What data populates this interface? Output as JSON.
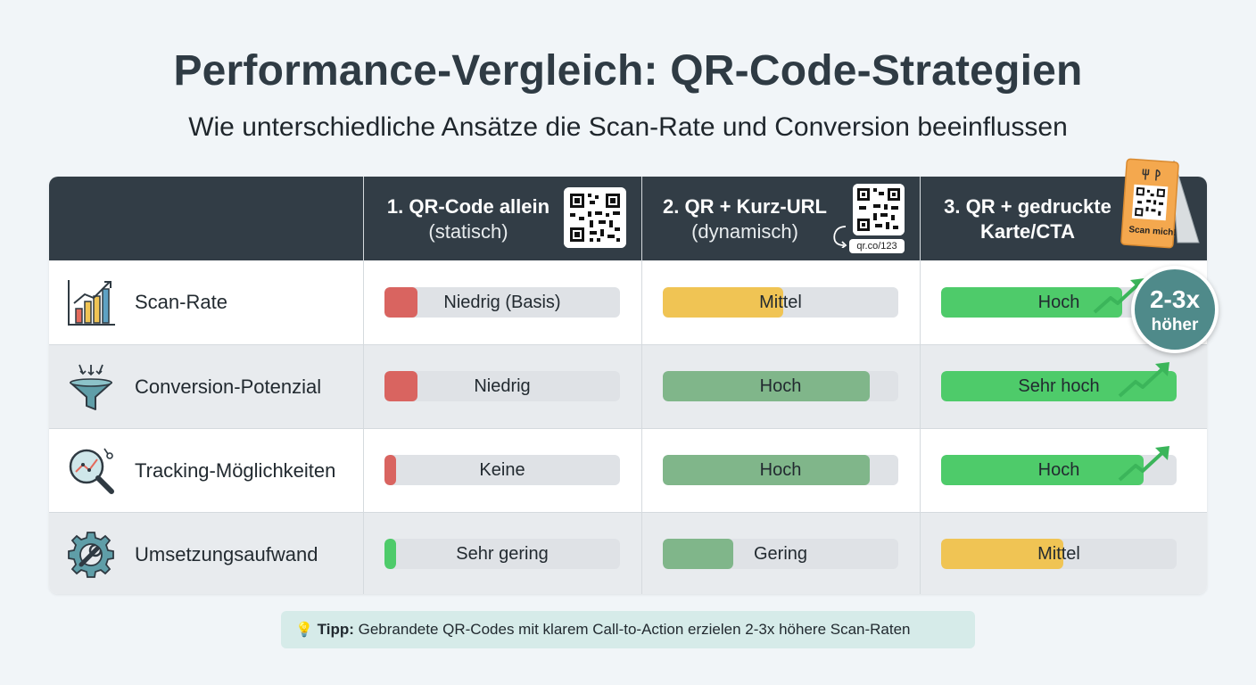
{
  "title": "Performance-Vergleich: QR-Code-Strategien",
  "subtitle": "Wie unterschiedliche Ansätze die Scan-Rate und Conversion beeinflussen",
  "columns": [
    {
      "label": "1. QR-Code allein",
      "sub": "(statisch)"
    },
    {
      "label": "2. QR + Kurz-URL",
      "sub": "(dynamisch)",
      "short_url": "qr.co/123"
    },
    {
      "label": "3. QR + gedruckte",
      "label2": "Karte/CTA",
      "card_text": "Scan mich!"
    }
  ],
  "rows": [
    {
      "label": "Scan-Rate",
      "icon": "bar-chart-icon",
      "cells": [
        {
          "text": "Niedrig (Basis)",
          "level": 0.14,
          "color": "#d96460"
        },
        {
          "text": "Mittel",
          "level": 0.51,
          "color": "#f0c454"
        },
        {
          "text": "Hoch",
          "level": 0.77,
          "color": "#4ecb6a"
        }
      ]
    },
    {
      "label": "Conversion-Potenzial",
      "icon": "funnel-icon",
      "cells": [
        {
          "text": "Niedrig",
          "level": 0.14,
          "color": "#d96460"
        },
        {
          "text": "Hoch",
          "level": 0.88,
          "color": "#80b68a"
        },
        {
          "text": "Sehr hoch",
          "level": 1.0,
          "color": "#4ecb6a"
        }
      ]
    },
    {
      "label": "Tracking-Möglichkeiten",
      "icon": "magnifier-analytics-icon",
      "cells": [
        {
          "text": "Keine",
          "level": 0.05,
          "color": "#d96460"
        },
        {
          "text": "Hoch",
          "level": 0.88,
          "color": "#80b68a"
        },
        {
          "text": "Hoch",
          "level": 0.86,
          "color": "#4ecb6a"
        }
      ]
    },
    {
      "label": "Umsetzungsaufwand",
      "icon": "gear-wrench-icon",
      "cells": [
        {
          "text": "Sehr gering",
          "level": 0.05,
          "color": "#4ecb6a"
        },
        {
          "text": "Gering",
          "level": 0.3,
          "color": "#80b68a"
        },
        {
          "text": "Mittel",
          "level": 0.52,
          "color": "#f0c454"
        }
      ]
    }
  ],
  "badge": {
    "big": "2-3x",
    "small": "höher"
  },
  "tip": {
    "label": "Tipp:",
    "text": "Gebrandete QR-Codes mit klarem Call-to-Action erzielen 2-3x höhere Scan-Raten"
  },
  "colors": {
    "header": "#323d46",
    "accent": "#4f8a8a",
    "tip_bg": "#d6ebe9"
  }
}
